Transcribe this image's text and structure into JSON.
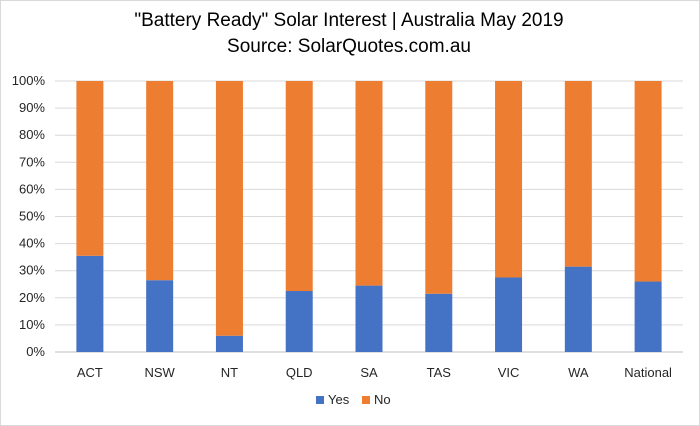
{
  "chart_data": {
    "type": "bar",
    "stacked": true,
    "title": "\"Battery Ready\" Solar Interest  |  Australia May 2019",
    "subtitle": "Source: SolarQuotes.com.au",
    "categories": [
      "ACT",
      "NSW",
      "NT",
      "QLD",
      "SA",
      "TAS",
      "VIC",
      "WA",
      "National"
    ],
    "series": [
      {
        "name": "Yes",
        "color": "#4472C4",
        "values": [
          35.5,
          26.5,
          6,
          22.5,
          24.5,
          21.5,
          27.5,
          31.5,
          26
        ]
      },
      {
        "name": "No",
        "color": "#ED7D31",
        "values": [
          64.5,
          73.5,
          94,
          77.5,
          75.5,
          78.5,
          72.5,
          68.5,
          74
        ]
      }
    ],
    "ylim": [
      0,
      100
    ],
    "yticks": [
      "0%",
      "10%",
      "20%",
      "30%",
      "40%",
      "50%",
      "60%",
      "70%",
      "80%",
      "90%",
      "100%"
    ],
    "grid": true,
    "gridColor": "#d9d9d9",
    "legend": "bottom"
  }
}
